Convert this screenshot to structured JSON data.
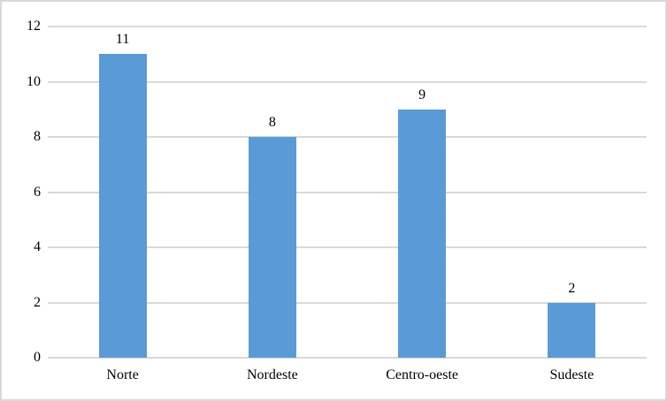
{
  "chart_data": {
    "type": "bar",
    "title": "",
    "xlabel": "",
    "ylabel": "",
    "categories": [
      "Norte",
      "Nordeste",
      "Centro-oeste",
      "Sudeste"
    ],
    "values": [
      11,
      8,
      9,
      2
    ],
    "data_labels": [
      "11",
      "8",
      "9",
      "2"
    ],
    "yticks": [
      0,
      2,
      4,
      6,
      8,
      10,
      12
    ],
    "ylim": [
      0,
      12
    ],
    "grid": true,
    "legend": false,
    "colors": {
      "bar": "#5B9BD5",
      "gridline": "#D9D9D9",
      "axis_line": "#D9D9D9",
      "border": "#D9D9D9",
      "text": "#000000",
      "background": "#ffffff"
    }
  }
}
